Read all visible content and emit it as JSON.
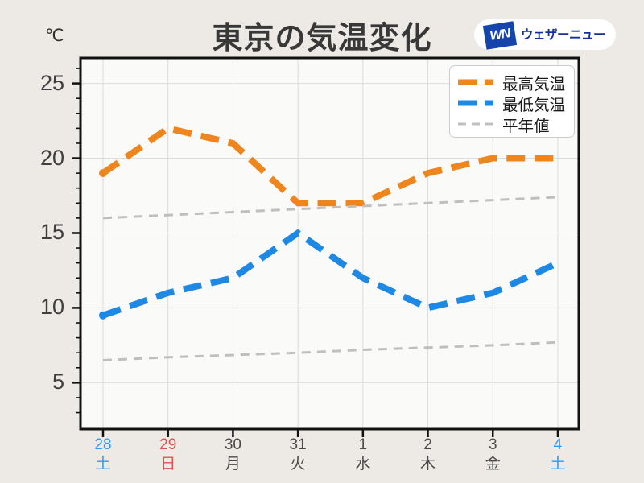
{
  "logo": {
    "badge": "WN",
    "text": "ウェザーニュース",
    "badge_color": "#1545AC",
    "text_color": "#14309E"
  },
  "legend": [
    {
      "label": "最高気温",
      "color": "#EF861D"
    },
    {
      "label": "最低気温",
      "color": "#1E88E5"
    },
    {
      "label": "平年値",
      "color": "#BFBFBF"
    }
  ],
  "chart_data": {
    "type": "line",
    "title": "東京の気温変化",
    "ylabel": "℃",
    "ylim": [
      1.9,
      26.7
    ],
    "yticks": [
      5,
      10,
      15,
      20,
      25
    ],
    "grid": true,
    "legend_position": "top-right",
    "plot_bg": "#FAFAF8",
    "grid_color": "#DCDCDC",
    "axis_color": "#111111",
    "x_labels": [
      {
        "date": "28",
        "weekday": "土",
        "color": "#3598F0"
      },
      {
        "date": "29",
        "weekday": "日",
        "color": "#E05050"
      },
      {
        "date": "30",
        "weekday": "月",
        "color": "#4a4a4a"
      },
      {
        "date": "31",
        "weekday": "火",
        "color": "#4a4a4a"
      },
      {
        "date": "1",
        "weekday": "水",
        "color": "#4a4a4a"
      },
      {
        "date": "2",
        "weekday": "木",
        "color": "#4a4a4a"
      },
      {
        "date": "3",
        "weekday": "金",
        "color": "#4a4a4a"
      },
      {
        "date": "4",
        "weekday": "土",
        "color": "#3598F0"
      }
    ],
    "series": [
      {
        "name": "最高気温",
        "key": "max-temp",
        "color": "#EF861D",
        "width": 8,
        "dash": "23 12",
        "start_dot": true,
        "values": [
          19,
          22,
          21,
          17,
          17,
          19,
          20,
          20
        ]
      },
      {
        "name": "最低気温",
        "key": "min-temp",
        "color": "#1E88E5",
        "width": 8,
        "dash": "23 12",
        "start_dot": true,
        "values": [
          9.5,
          11,
          12,
          15,
          12,
          10,
          11,
          13
        ]
      },
      {
        "name": "平年値(最高)",
        "key": "normal-high",
        "color": "#BFBFBF",
        "width": 3,
        "dash": "11 8",
        "start_dot": false,
        "values": [
          16.0,
          16.2,
          16.4,
          16.6,
          16.8,
          17.0,
          17.2,
          17.4
        ]
      },
      {
        "name": "平年値(最低)",
        "key": "normal-low",
        "color": "#BFBFBF",
        "width": 3,
        "dash": "11 8",
        "start_dot": false,
        "values": [
          6.5,
          6.7,
          6.85,
          7.0,
          7.2,
          7.35,
          7.5,
          7.7
        ]
      }
    ]
  }
}
